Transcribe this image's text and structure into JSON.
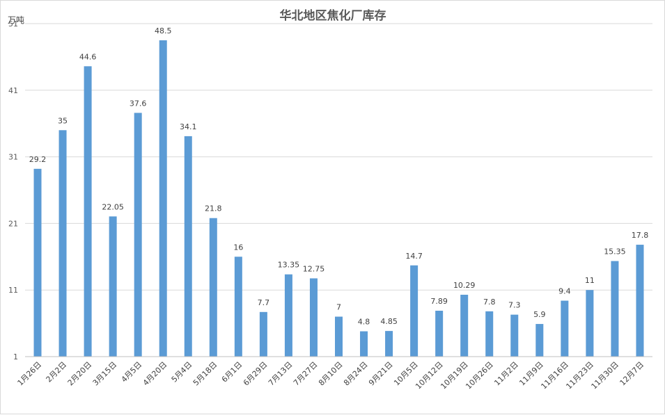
{
  "chart_data": {
    "type": "bar",
    "title": "华北地区焦化厂库存",
    "unit_label": "万吨",
    "categories": [
      "1月26日",
      "2月2日",
      "2月20日",
      "3月15日",
      "4月5日",
      "4月20日",
      "5月4日",
      "5月18日",
      "6月1日",
      "6月29日",
      "7月13日",
      "7月27日",
      "8月10日",
      "8月24日",
      "9月21日",
      "10月5日",
      "10月12日",
      "10月19日",
      "10月26日",
      "11月2日",
      "11月9日",
      "11月16日",
      "11月23日",
      "11月30日",
      "12月7日"
    ],
    "values": [
      29.2,
      35,
      44.6,
      22.05,
      37.6,
      48.5,
      34.1,
      21.8,
      16,
      7.7,
      13.35,
      12.75,
      7,
      4.8,
      4.85,
      14.7,
      7.89,
      10.29,
      7.8,
      7.3,
      5.9,
      9.4,
      11,
      15.35,
      17.8
    ],
    "data_labels": [
      "29.2",
      "35",
      "44.6",
      "22.05",
      "37.6",
      "48.5",
      "34.1",
      "21.8",
      "16",
      "7.7",
      "13.35",
      "12.75",
      "7",
      "4.8",
      "4.85",
      "14.7",
      "7.89",
      "10.29",
      "7.8",
      "7.3",
      "5.9",
      "9.4",
      "11",
      "15.35",
      "17.8"
    ],
    "yticks": [
      "1",
      "11",
      "21",
      "31",
      "41",
      "51"
    ],
    "ylim": [
      1,
      51
    ],
    "grid": true,
    "legend": "none",
    "bar_color": "#5b9bd5"
  }
}
